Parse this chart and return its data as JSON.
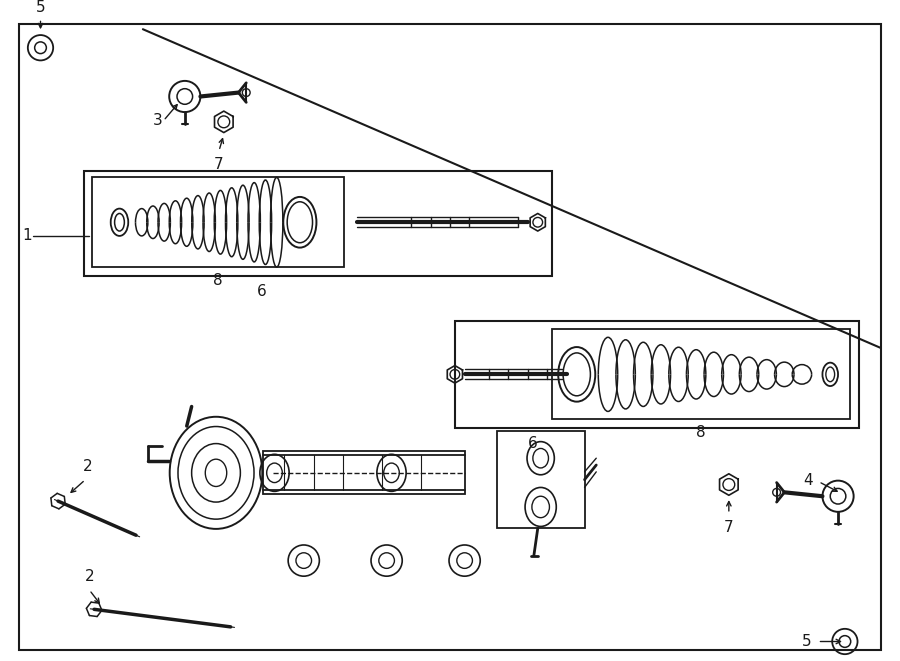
{
  "bg_color": "#ffffff",
  "line_color": "#1a1a1a",
  "fig_width": 9.0,
  "fig_height": 6.61,
  "dpi": 100,
  "label_fontsize": 11
}
